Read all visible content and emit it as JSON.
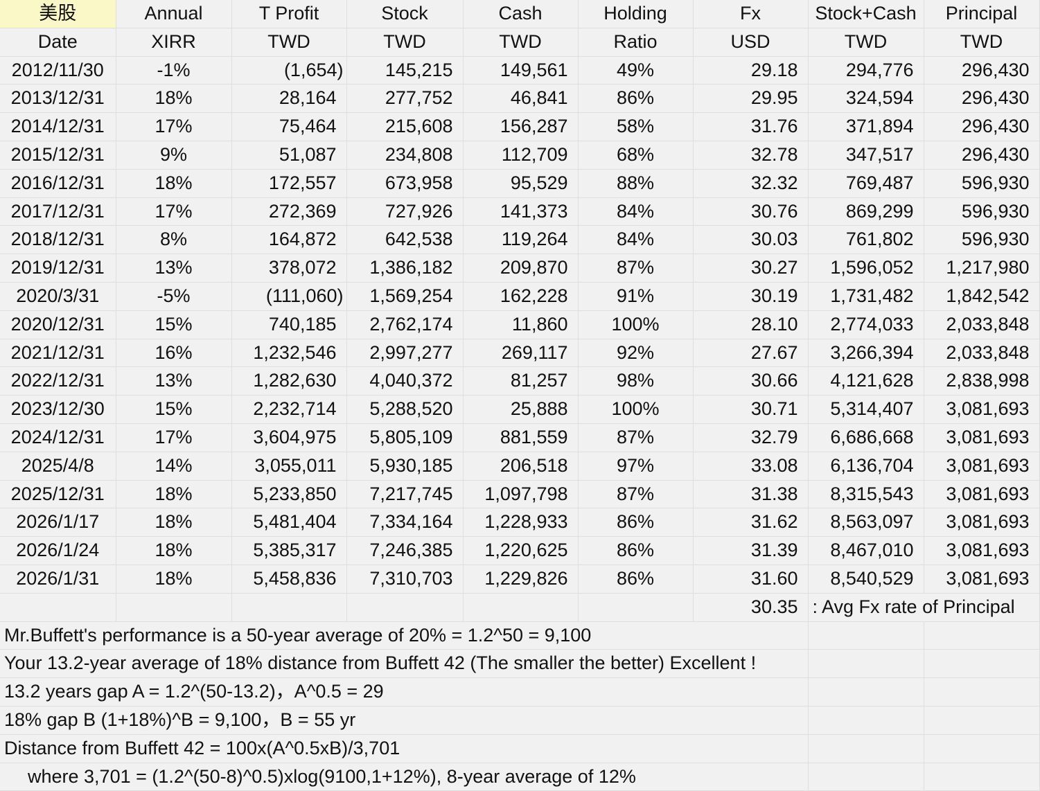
{
  "header": {
    "row1": [
      "美股",
      "Annual",
      "T Profit",
      "Stock",
      "Cash",
      "Holding",
      "Fx",
      "Stock+Cash",
      "Principal"
    ],
    "row2": [
      "Date",
      "XIRR",
      "TWD",
      "TWD",
      "TWD",
      "Ratio",
      "USD",
      "TWD",
      "TWD"
    ]
  },
  "rows": [
    [
      "2012/11/30",
      "-1%",
      "(1,654)",
      "145,215",
      "149,561",
      "49%",
      "29.18",
      "294,776",
      "296,430"
    ],
    [
      "2013/12/31",
      "18%",
      "28,164",
      "277,752",
      "46,841",
      "86%",
      "29.95",
      "324,594",
      "296,430"
    ],
    [
      "2014/12/31",
      "17%",
      "75,464",
      "215,608",
      "156,287",
      "58%",
      "31.76",
      "371,894",
      "296,430"
    ],
    [
      "2015/12/31",
      "9%",
      "51,087",
      "234,808",
      "112,709",
      "68%",
      "32.78",
      "347,517",
      "296,430"
    ],
    [
      "2016/12/31",
      "18%",
      "172,557",
      "673,958",
      "95,529",
      "88%",
      "32.32",
      "769,487",
      "596,930"
    ],
    [
      "2017/12/31",
      "17%",
      "272,369",
      "727,926",
      "141,373",
      "84%",
      "30.76",
      "869,299",
      "596,930"
    ],
    [
      "2018/12/31",
      "8%",
      "164,872",
      "642,538",
      "119,264",
      "84%",
      "30.03",
      "761,802",
      "596,930"
    ],
    [
      "2019/12/31",
      "13%",
      "378,072",
      "1,386,182",
      "209,870",
      "87%",
      "30.27",
      "1,596,052",
      "1,217,980"
    ],
    [
      "2020/3/31",
      "-5%",
      "(111,060)",
      "1,569,254",
      "162,228",
      "91%",
      "30.19",
      "1,731,482",
      "1,842,542"
    ],
    [
      "2020/12/31",
      "15%",
      "740,185",
      "2,762,174",
      "11,860",
      "100%",
      "28.10",
      "2,774,033",
      "2,033,848"
    ],
    [
      "2021/12/31",
      "16%",
      "1,232,546",
      "2,997,277",
      "269,117",
      "92%",
      "27.67",
      "3,266,394",
      "2,033,848"
    ],
    [
      "2022/12/31",
      "13%",
      "1,282,630",
      "4,040,372",
      "81,257",
      "98%",
      "30.66",
      "4,121,628",
      "2,838,998"
    ],
    [
      "2023/12/30",
      "15%",
      "2,232,714",
      "5,288,520",
      "25,888",
      "100%",
      "30.71",
      "5,314,407",
      "3,081,693"
    ],
    [
      "2024/12/31",
      "17%",
      "3,604,975",
      "5,805,109",
      "881,559",
      "87%",
      "32.79",
      "6,686,668",
      "3,081,693"
    ],
    [
      "2025/4/8",
      "14%",
      "3,055,011",
      "5,930,185",
      "206,518",
      "97%",
      "33.08",
      "6,136,704",
      "3,081,693"
    ],
    [
      "2025/12/31",
      "18%",
      "5,233,850",
      "7,217,745",
      "1,097,798",
      "87%",
      "31.38",
      "8,315,543",
      "3,081,693"
    ],
    [
      "2026/1/17",
      "18%",
      "5,481,404",
      "7,334,164",
      "1,228,933",
      "86%",
      "31.62",
      "8,563,097",
      "3,081,693"
    ],
    [
      "2026/1/24",
      "18%",
      "5,385,317",
      "7,246,385",
      "1,220,625",
      "86%",
      "31.39",
      "8,467,010",
      "3,081,693"
    ],
    [
      "2026/1/31",
      "18%",
      "5,458,836",
      "7,310,703",
      "1,229,826",
      "86%",
      "31.60",
      "8,540,529",
      "3,081,693"
    ]
  ],
  "fx_summary": {
    "value": "30.35",
    "label": ": Avg Fx rate of Principal"
  },
  "notes": [
    "Mr.Buffett's performance is a 50-year average of 20% = 1.2^50 = 9,100",
    "Your 13.2-year average of 18% distance from Buffett 42 (The smaller the better) Excellent !",
    "13.2 years gap A = 1.2^(50-13.2)，A^0.5 = 29",
    "18% gap B (1+18%)^B = 9,100，B = 55 yr",
    "Distance from Buffett 42 = 100x(A^0.5xB)/3,701",
    "where 3,701 = (1.2^(50-8)^0.5)xlog(9100,1+12%), 8-year average of 12%"
  ],
  "colors": {
    "background": "#f1f1f1",
    "gridline": "#dedede",
    "highlight": "#fbf8c8",
    "text": "#111111"
  }
}
